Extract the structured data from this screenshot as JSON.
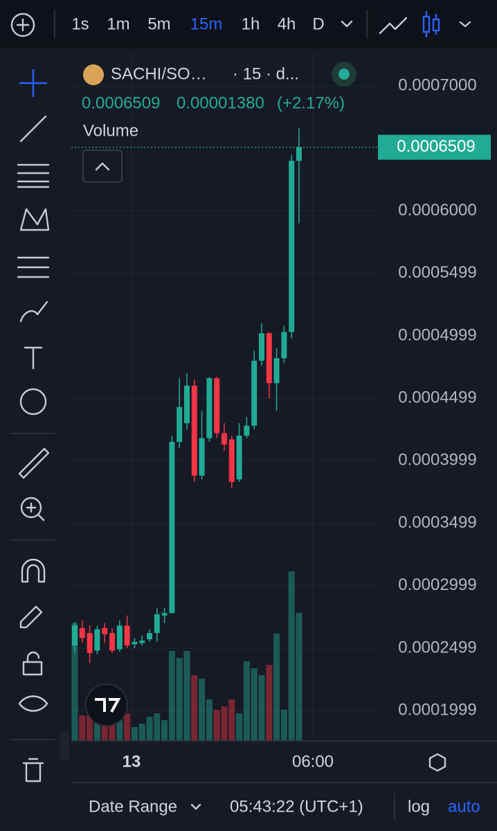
{
  "toolbar": {
    "intervals": [
      "1s",
      "1m",
      "5m",
      "15m",
      "1h",
      "4h",
      "D"
    ],
    "active": 3
  },
  "header": {
    "symbol": "SACHI/SO…",
    "meta": "· 15 · d...",
    "price": "0.0006509",
    "change": "0.00001380",
    "change_pct": "(+2.17%)",
    "volume_label": "Volume"
  },
  "x_axis": {
    "labels": [
      "13",
      "06:00"
    ]
  },
  "footer": {
    "date_range": "Date Range",
    "time": "05:43:22 (UTC+1)",
    "log": "log",
    "auto": "auto"
  },
  "chart_data": {
    "type": "candlestick",
    "up_color": "#22ab94",
    "down_color": "#f23645",
    "ylim": [
      0.0001756,
      0.0007272
    ],
    "yticks": [
      {
        "value": 0.0007,
        "label": "0.0007000"
      },
      {
        "value": 0.0006,
        "label": "0.0006000"
      },
      {
        "value": 0.0005499,
        "label": "0.0005499"
      },
      {
        "value": 0.0004999,
        "label": "0.0004999"
      },
      {
        "value": 0.0004499,
        "label": "0.0004499"
      },
      {
        "value": 0.0003999,
        "label": "0.0003999"
      },
      {
        "value": 0.0003499,
        "label": "0.0003499"
      },
      {
        "value": 0.0002999,
        "label": "0.0002999"
      },
      {
        "value": 0.0002499,
        "label": "0.0002499"
      },
      {
        "value": 0.0001999,
        "label": "0.0001999"
      }
    ],
    "last_price": 0.0006509,
    "open": [
      0.000252,
      0.000266,
      0.000262,
      0.000248,
      0.000266,
      0.000262,
      0.000249,
      0.000268,
      0.000253,
      0.000254,
      0.000257,
      0.000262,
      0.000276,
      0.000278,
      0.000415,
      0.00043,
      0.00046,
      0.000388,
      0.000418,
      0.000466,
      0.000422,
      0.000417,
      0.000385,
      0.00042,
      0.000428,
      0.00048,
      0.000502,
      0.000462,
      0.000482,
      0.000503,
      0.00064
    ],
    "high": [
      0.000271,
      0.000272,
      0.000268,
      0.000268,
      0.00027,
      0.000266,
      0.000272,
      0.000276,
      0.000258,
      0.00026,
      0.000265,
      0.000282,
      0.000282,
      0.00042,
      0.000466,
      0.00047,
      0.000465,
      0.00044,
      0.000467,
      0.000467,
      0.00043,
      0.00042,
      0.00043,
      0.000435,
      0.000488,
      0.00051,
      0.000503,
      0.00049,
      0.000508,
      0.000645,
      0.000666
    ],
    "low": [
      0.000246,
      0.000254,
      0.000238,
      0.000245,
      0.000254,
      0.000246,
      0.000247,
      0.00025,
      0.00025,
      0.000252,
      0.000255,
      0.000255,
      0.00027,
      0.000278,
      0.00041,
      0.000425,
      0.000383,
      0.000385,
      0.000415,
      0.000418,
      0.000408,
      0.000378,
      0.000383,
      0.000418,
      0.000425,
      0.000476,
      0.00045,
      0.00044,
      0.000478,
      0.000498,
      0.00059
    ],
    "close": [
      0.000268,
      0.000258,
      0.000246,
      0.000265,
      0.000261,
      0.000248,
      0.000268,
      0.000252,
      0.000255,
      0.000256,
      0.000262,
      0.000277,
      0.000278,
      0.000415,
      0.000443,
      0.00046,
      0.000388,
      0.000418,
      0.000466,
      0.000422,
      0.000413,
      0.000383,
      0.00042,
      0.000428,
      0.00048,
      0.000502,
      0.000462,
      0.000482,
      0.000503,
      0.00064,
      0.000651
    ],
    "volume": [
      170,
      37,
      37,
      30,
      40,
      30,
      30,
      40,
      20,
      25,
      35,
      40,
      30,
      130,
      120,
      130,
      95,
      90,
      60,
      45,
      50,
      60,
      40,
      115,
      105,
      95,
      110,
      155,
      45,
      245,
      185
    ],
    "vlim": [
      0,
      300
    ]
  }
}
